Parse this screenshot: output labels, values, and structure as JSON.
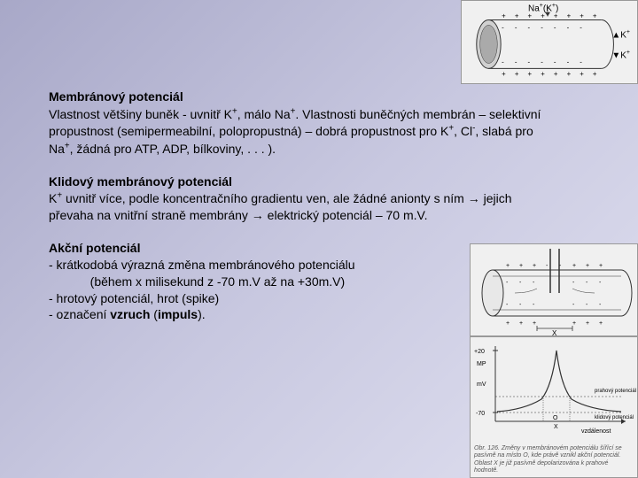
{
  "fig_top": {
    "label_html": "Na<sup>+</sup>(K<sup>+</sup>)",
    "k_up_html": "▲K<sup>+</sup>",
    "k_down_html": "▼K<sup>+</sup>",
    "stroke": "#333",
    "fill": "#e8e8e8",
    "dotfill": "#888"
  },
  "section1": {
    "title": "Membránový potenciál",
    "body_html": " Vlastnost většiny buněk - uvnitř K<sup>+</sup>, málo Na<sup>+</sup>. Vlastnosti buněčných membrán – selektivní propustnost (semipermeabilní, polopropustná) – dobrá propustnost pro K<sup>+</sup>, Cl<sup>-</sup>, slabá pro Na<sup>+</sup>, žádná pro ATP, ADP, bílkoviny, . . . )."
  },
  "section2": {
    "title": "Klidový membránový potenciál",
    "body_html": " K<sup>+</sup> uvnitř více, podle koncentračního gradientu ven, ale žádné anionty s ním → jejich převaha na vnitřní straně membrány → elektrický potenciál – 70 m.V."
  },
  "section3": {
    "title": "Akční potenciál",
    "lines": [
      "- krátkodobá výrazná změna membránového potenciálu",
      "            (během x milisekund z -70 m.V až na +30m.V)",
      "- hrotový potenciál, hrot (spike)"
    ],
    "last_html": "- označení <b>vzruch</b> (<b>impuls</b>)."
  },
  "fig_mid": {
    "stroke": "#333",
    "fill": "#f5f5f5"
  },
  "fig_bot": {
    "caption": "Obr. 126. Změny v membránovém potenciálu šířící se pasívně na místo O, kde právě vznikl akční potenciál. Oblast X je již pasívně depolarizována k prahové hodnotě.",
    "ylabels": [
      "+20",
      "MP",
      "mV",
      "-70"
    ],
    "xlabel": "vzdálenost",
    "rlabels": [
      "prahový potenciál",
      "klidový potenciál"
    ],
    "stroke": "#333",
    "bg": "#f8f8f8"
  }
}
